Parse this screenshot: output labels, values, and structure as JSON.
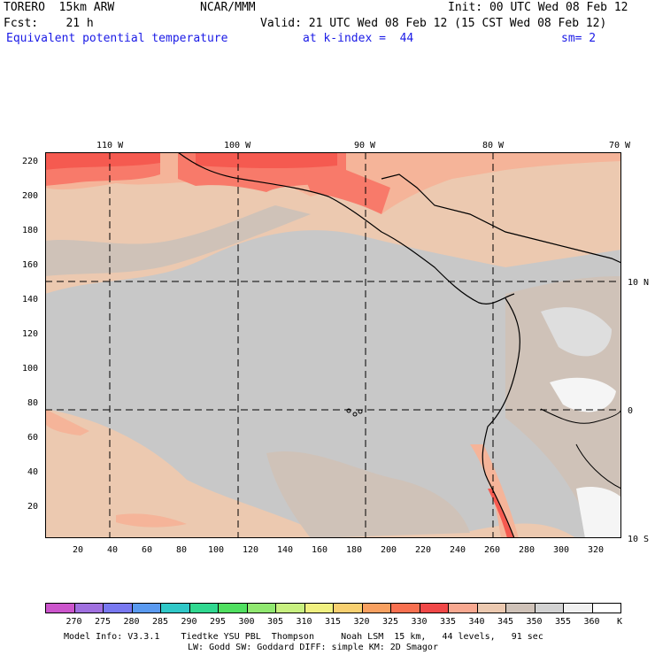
{
  "header": {
    "model": "TORERO  15km ARW",
    "org": "NCAR/MMM",
    "init": "Init: 00 UTC Wed 08 Feb 12",
    "fcst": "Fcst:    21 h",
    "valid": "Valid: 21 UTC Wed 08 Feb 12 (15 CST Wed 08 Feb 12)",
    "field": "Equivalent potential temperature",
    "level": "at k-index =  44",
    "smooth": "sm= 2"
  },
  "map": {
    "lon_labels": [
      "110 W",
      "100 W",
      "90 W",
      "80 W",
      "70 W"
    ],
    "lat_labels": [
      "10 N",
      "0",
      "10 S"
    ],
    "y_ticks": [
      "220",
      "200",
      "180",
      "160",
      "140",
      "120",
      "100",
      "80",
      "60",
      "40",
      "20"
    ],
    "x_ticks": [
      "20",
      "40",
      "60",
      "80",
      "100",
      "120",
      "140",
      "160",
      "180",
      "200",
      "220",
      "240",
      "260",
      "280",
      "300",
      "320"
    ],
    "colors": {
      "ocean_main": "#c8c8c8",
      "tan": "#ecc9b0",
      "warm": "#f5b499",
      "hot": "#f87a6a",
      "hotter": "#f55a50",
      "light": "#dedede",
      "white": "#f5f5f5",
      "coast": "#000000",
      "grid": "#000000"
    }
  },
  "colorbar": {
    "labels": [
      "270",
      "275",
      "280",
      "285",
      "290",
      "295",
      "300",
      "305",
      "310",
      "315",
      "320",
      "325",
      "330",
      "335",
      "340",
      "345",
      "350",
      "355",
      "360"
    ],
    "unit": "K",
    "colors": [
      "#cc55cc",
      "#a070e0",
      "#7878f0",
      "#5a9af0",
      "#30c8c8",
      "#30d890",
      "#50e060",
      "#90e870",
      "#c8f080",
      "#f0f080",
      "#f8d070",
      "#f8a060",
      "#f87050",
      "#f04848",
      "#f8a890",
      "#ecc9b0",
      "#cfc2b8",
      "#d2d2d2",
      "#f0f0f0",
      "#ffffff"
    ]
  },
  "footer": {
    "line1": "Model Info: V3.3.1    Tiedtke YSU PBL  Thompson     Noah LSM  15 km,   44 levels,   91 sec",
    "line2": "LW: Godd SW: Goddard DIFF: simple KM: 2D Smagor"
  }
}
